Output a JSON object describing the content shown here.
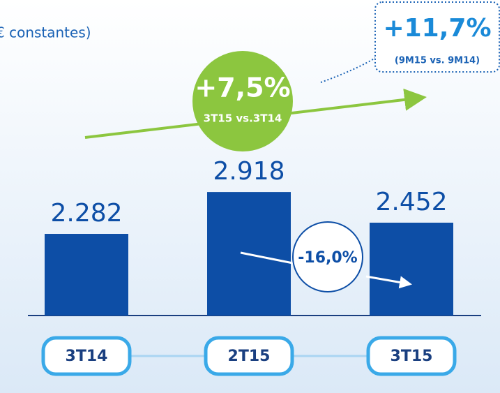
{
  "chart_data": {
    "type": "bar",
    "subtitle": "€ constantes)",
    "categories": [
      "3T14",
      "2T15",
      "3T15"
    ],
    "values": [
      2282,
      2918,
      2452
    ],
    "value_labels": [
      "2.282",
      "2.918",
      "2.452"
    ],
    "color": "#0d4ea6",
    "ylim": [
      1040,
      5000
    ],
    "annotations": {
      "growth_quarter": "+7,5%",
      "growth_quarter_note": "3T15 vs.3T14",
      "growth_nine_months": "+11,7%",
      "growth_nine_months_note": "(9M15 vs. 9M14)",
      "change_last": "-16,0%"
    }
  }
}
